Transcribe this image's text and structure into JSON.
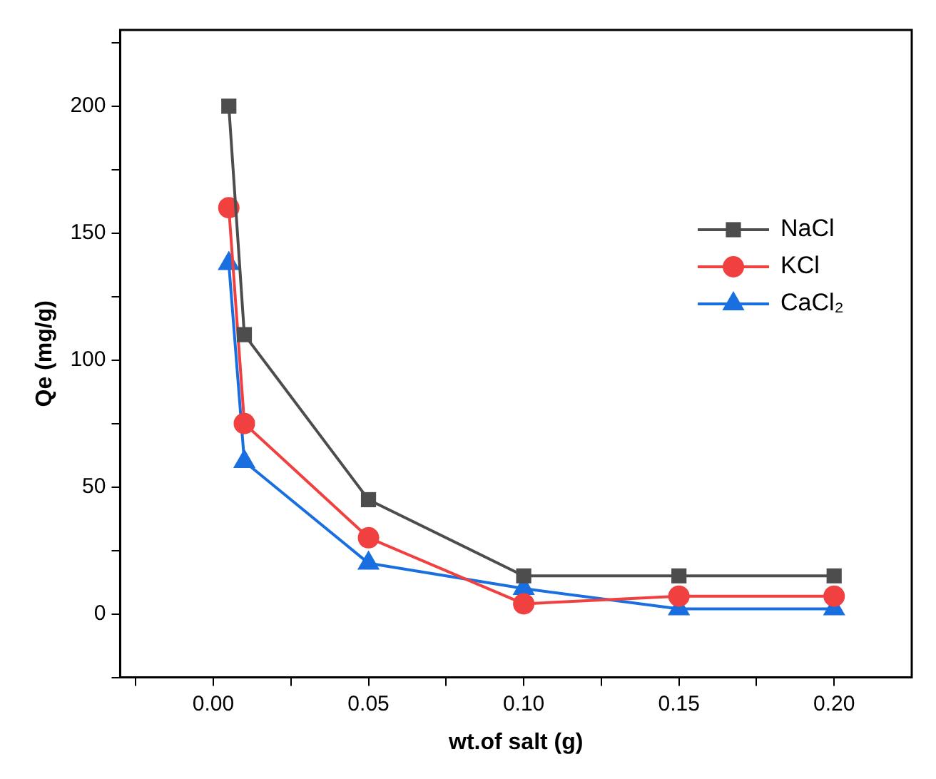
{
  "chart_data": {
    "type": "line",
    "xlabel": "wt.of salt (g)",
    "ylabel": "Qe (mg/g)",
    "x": [
      0.005,
      0.01,
      0.05,
      0.1,
      0.15,
      0.2
    ],
    "series": [
      {
        "name": "NaCl",
        "color": "#4d4d4d",
        "marker": "square",
        "values": [
          200,
          110,
          45,
          15,
          15,
          15
        ]
      },
      {
        "name": "KCl",
        "color": "#f04040",
        "marker": "circle",
        "values": [
          160,
          75,
          30,
          4,
          7,
          7
        ]
      },
      {
        "name": "CaCl₂",
        "color": "#1a6fe0",
        "marker": "triangle",
        "values": [
          138,
          60,
          20,
          10,
          2,
          2
        ]
      }
    ],
    "xlim": [
      -0.03,
      0.225
    ],
    "ylim": [
      -25,
      230
    ],
    "xticks": [
      {
        "value": -0.025,
        "label": null
      },
      {
        "value": 0,
        "label": "0.00"
      },
      {
        "value": 0.025,
        "label": null
      },
      {
        "value": 0.05,
        "label": "0.05"
      },
      {
        "value": 0.075,
        "label": null
      },
      {
        "value": 0.1,
        "label": "0.10"
      },
      {
        "value": 0.125,
        "label": null
      },
      {
        "value": 0.15,
        "label": "0.15"
      },
      {
        "value": 0.175,
        "label": null
      },
      {
        "value": 0.2,
        "label": "0.20"
      }
    ],
    "yticks": [
      {
        "value": -25,
        "label": null
      },
      0,
      {
        "value": 25,
        "label": null
      },
      50,
      {
        "value": 75,
        "label": null
      },
      100,
      {
        "value": 125,
        "label": null
      },
      150,
      {
        "value": 175,
        "label": null
      },
      200,
      {
        "value": 225,
        "label": null
      }
    ],
    "grid": false,
    "legend": "top right",
    "line_style": "solid"
  }
}
